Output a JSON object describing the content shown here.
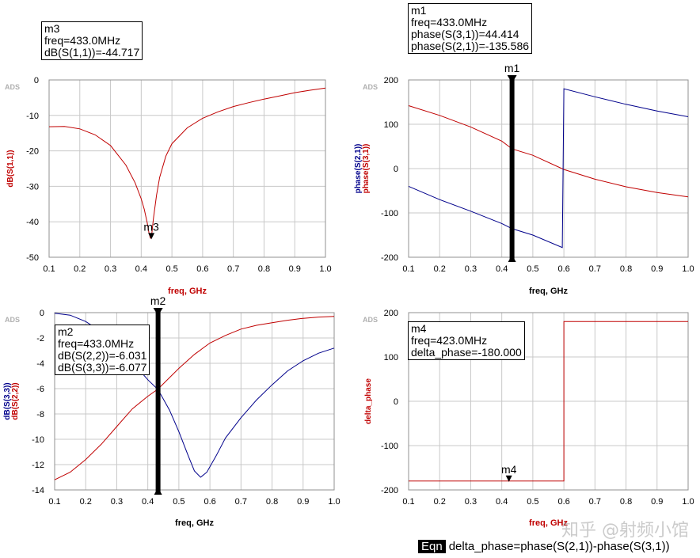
{
  "colors": {
    "red": "#c00000",
    "blue": "#00008b",
    "grid": "#c8c8c8",
    "marker": "#000000"
  },
  "watermark": "知乎 @射频小馆",
  "equation": {
    "tag": "Eqn",
    "text": "delta_phase=phase(S(2,1))-phase(S(3,1))"
  },
  "chart_data": [
    {
      "id": "p1",
      "type": "line",
      "ads": "ADS",
      "xlabel": "freq, GHz",
      "xlabel_color": "#c00000",
      "ylabel_lines": [
        {
          "text": "dB(S(1,1))",
          "color": "#c00000"
        }
      ],
      "xlim": [
        0.1,
        1.0
      ],
      "ylim": [
        -50,
        0
      ],
      "xticks": [
        "0.1",
        "0.2",
        "0.3",
        "0.4",
        "0.5",
        "0.6",
        "0.7",
        "0.8",
        "0.9",
        "1.0"
      ],
      "yticks": [
        "0",
        "-10",
        "-20",
        "-30",
        "-40",
        "-50"
      ],
      "series": [
        {
          "name": "dB(S(1,1))",
          "color": "#c00000",
          "x": [
            0.1,
            0.15,
            0.2,
            0.25,
            0.3,
            0.35,
            0.38,
            0.4,
            0.41,
            0.42,
            0.425,
            0.43,
            0.435,
            0.44,
            0.45,
            0.46,
            0.48,
            0.5,
            0.55,
            0.6,
            0.65,
            0.7,
            0.75,
            0.8,
            0.85,
            0.9,
            0.95,
            1.0
          ],
          "y": [
            -13.2,
            -13.1,
            -13.8,
            -15.5,
            -18.5,
            -24,
            -29,
            -33.5,
            -36.5,
            -40.5,
            -43,
            -44.7,
            -43,
            -39,
            -32.5,
            -27.5,
            -21.5,
            -18,
            -13.5,
            -10.8,
            -9,
            -7.5,
            -6.4,
            -5.4,
            -4.5,
            -3.6,
            -2.9,
            -2.3
          ]
        }
      ],
      "markers": [
        {
          "label": "m3",
          "x": 0.433,
          "y": -44.717,
          "style": "triangle"
        }
      ],
      "readout": {
        "name": "m3",
        "lines": [
          "freq=433.0MHz",
          "dB(S(1,1))=-44.717"
        ]
      }
    },
    {
      "id": "p2",
      "type": "line",
      "ads": "ADS",
      "xlabel": "freq, GHz",
      "xlabel_color": "#000000",
      "ylabel_lines": [
        {
          "text": "phase(S(2,1))",
          "color": "#00008b"
        },
        {
          "text": "phase(S(3,1))",
          "color": "#c00000"
        }
      ],
      "xlim": [
        0.1,
        1.0
      ],
      "ylim": [
        -200,
        200
      ],
      "xticks": [
        "0.1",
        "0.2",
        "0.3",
        "0.4",
        "0.5",
        "0.6",
        "0.7",
        "0.8",
        "0.9",
        "1.0"
      ],
      "yticks": [
        "200",
        "100",
        "0",
        "-100",
        "-200"
      ],
      "series": [
        {
          "name": "phase(S(3,1))",
          "color": "#c00000",
          "x": [
            0.1,
            0.2,
            0.3,
            0.4,
            0.433,
            0.5,
            0.6,
            0.7,
            0.8,
            0.9,
            1.0
          ],
          "y": [
            142,
            120,
            94,
            62,
            44.4,
            30,
            -2,
            -24,
            -41,
            -54,
            -64
          ]
        },
        {
          "name": "phase(S(2,1))",
          "color": "#00008b",
          "x": [
            0.1,
            0.2,
            0.3,
            0.4,
            0.433,
            0.5,
            0.595,
            0.6,
            0.7,
            0.8,
            0.9,
            1.0
          ],
          "y": [
            -40,
            -70,
            -96,
            -124,
            -135.6,
            -150,
            -178,
            180,
            162,
            145,
            130,
            117
          ]
        }
      ],
      "markers": [
        {
          "label": "m1",
          "x": 0.433,
          "style": "bar"
        }
      ],
      "readout": {
        "name": "m1",
        "lines": [
          "freq=433.0MHz",
          "phase(S(3,1))=44.414",
          "phase(S(2,1))=-135.586"
        ]
      }
    },
    {
      "id": "p3",
      "type": "line",
      "ads": "ADS",
      "xlabel": "freq, GHz",
      "xlabel_color": "#000000",
      "ylabel_lines": [
        {
          "text": "dB(S(3,3))",
          "color": "#00008b"
        },
        {
          "text": "dB(S(2,2))",
          "color": "#c00000"
        }
      ],
      "xlim": [
        0.1,
        1.0
      ],
      "ylim": [
        -14,
        0
      ],
      "xticks": [
        "0.1",
        "0.2",
        "0.3",
        "0.4",
        "0.5",
        "0.6",
        "0.7",
        "0.8",
        "0.9",
        "1.0"
      ],
      "yticks": [
        "0",
        "-2",
        "-4",
        "-6",
        "-8",
        "-10",
        "-12",
        "-14"
      ],
      "series": [
        {
          "name": "dB(S(2,2))",
          "color": "#c00000",
          "x": [
            0.1,
            0.15,
            0.2,
            0.25,
            0.3,
            0.35,
            0.4,
            0.433,
            0.5,
            0.55,
            0.6,
            0.65,
            0.7,
            0.75,
            0.8,
            0.85,
            0.9,
            0.95,
            1.0
          ],
          "y": [
            -13.2,
            -12.6,
            -11.6,
            -10.4,
            -9.0,
            -7.6,
            -6.6,
            -6.03,
            -4.4,
            -3.3,
            -2.4,
            -1.8,
            -1.3,
            -1.0,
            -0.8,
            -0.6,
            -0.45,
            -0.35,
            -0.3
          ]
        },
        {
          "name": "dB(S(3,3))",
          "color": "#00008b",
          "x": [
            0.1,
            0.15,
            0.2,
            0.25,
            0.3,
            0.35,
            0.4,
            0.433,
            0.47,
            0.5,
            0.53,
            0.55,
            0.57,
            0.59,
            0.62,
            0.65,
            0.7,
            0.75,
            0.8,
            0.85,
            0.9,
            0.95,
            1.0
          ],
          "y": [
            -0.05,
            -0.2,
            -0.7,
            -1.5,
            -2.6,
            -3.9,
            -5.3,
            -6.08,
            -7.7,
            -9.4,
            -11.3,
            -12.5,
            -13.0,
            -12.6,
            -11.3,
            -9.9,
            -8.3,
            -6.9,
            -5.7,
            -4.6,
            -3.8,
            -3.2,
            -2.8
          ]
        }
      ],
      "markers": [
        {
          "label": "m2",
          "x": 0.433,
          "style": "bar"
        }
      ],
      "readout": {
        "name": "m2",
        "lines": [
          "freq=433.0MHz",
          "dB(S(2,2))=-6.031",
          "dB(S(3,3))=-6.077"
        ]
      }
    },
    {
      "id": "p4",
      "type": "line",
      "ads": "ADS",
      "xlabel": "freq, GHz",
      "xlabel_color": "#c00000",
      "ylabel_lines": [
        {
          "text": "delta_phase",
          "color": "#c00000"
        }
      ],
      "xlim": [
        0.1,
        1.0
      ],
      "ylim": [
        -200,
        200
      ],
      "xticks": [
        "0.1",
        "0.2",
        "0.3",
        "0.4",
        "0.5",
        "0.6",
        "0.7",
        "0.8",
        "0.9",
        "1.0"
      ],
      "yticks": [
        "200",
        "100",
        "0",
        "-100",
        "-200"
      ],
      "series": [
        {
          "name": "delta_phase",
          "color": "#c00000",
          "x": [
            0.1,
            0.6,
            0.6,
            1.0
          ],
          "y": [
            -180,
            -180,
            180,
            180
          ]
        }
      ],
      "markers": [
        {
          "label": "m4",
          "x": 0.423,
          "y": -180,
          "style": "triangle"
        }
      ],
      "readout": {
        "name": "m4",
        "lines": [
          "freq=423.0MHz",
          "delta_phase=-180.000"
        ]
      }
    }
  ]
}
